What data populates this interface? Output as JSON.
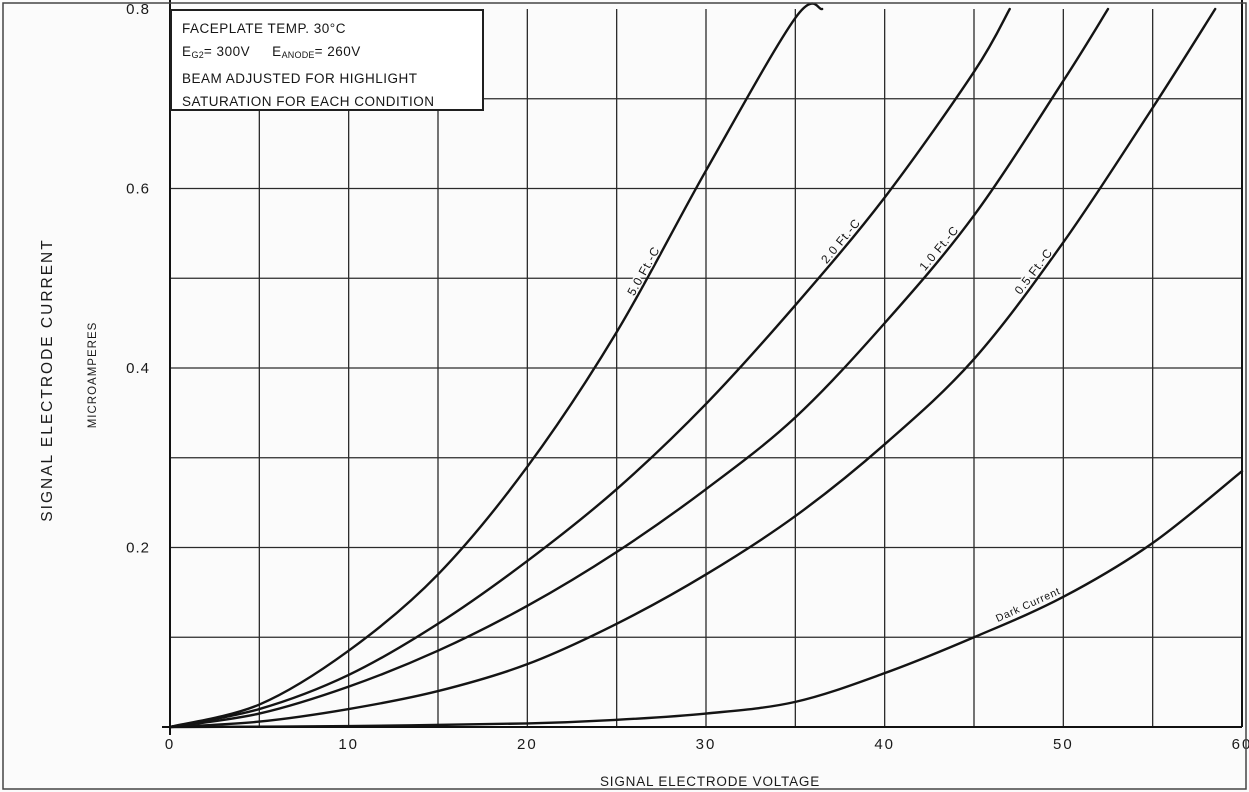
{
  "chart_data": {
    "type": "line",
    "xlabel": "SIGNAL ELECTRODE VOLTAGE",
    "ylabel": "SIGNAL ELECTRODE CURRENT",
    "ylabel_units": "MICROAMPERES",
    "xlim": [
      0,
      60
    ],
    "ylim": [
      0,
      0.8
    ],
    "x_ticks": [
      0,
      10,
      20,
      30,
      40,
      50,
      60
    ],
    "x_tick_labels": [
      "0",
      "10",
      "20",
      "30",
      "40",
      "50",
      "60"
    ],
    "y_ticks": [
      0.2,
      0.4,
      0.6,
      0.8
    ],
    "y_tick_labels": [
      "0.2",
      "0.4",
      "0.6",
      "0.8"
    ],
    "x_grid_step": 5,
    "y_grid_step": 0.1,
    "grid": true,
    "legend": "none",
    "annotation": {
      "line1": "FACEPLATE TEMP. 30°C",
      "eg2_symbol": "E",
      "eg2_sub": "G2",
      "eg2_value": "= 300V",
      "eanode_symbol": "E",
      "eanode_sub": "ANODE",
      "eanode_value": "= 260V",
      "line3": "BEAM ADJUSTED FOR HIGHLIGHT",
      "line4": "SATURATION FOR EACH CONDITION"
    },
    "series": [
      {
        "name": "5.0 Ft.-C",
        "x": [
          0,
          5,
          10,
          15,
          20,
          25,
          30,
          35,
          36.5
        ],
        "y": [
          0,
          0.025,
          0.085,
          0.17,
          0.29,
          0.44,
          0.62,
          0.79,
          0.8
        ]
      },
      {
        "name": "2.0 Ft.-C",
        "x": [
          0,
          5,
          10,
          15,
          20,
          25,
          30,
          35,
          40,
          45,
          47
        ],
        "y": [
          0,
          0.02,
          0.058,
          0.115,
          0.185,
          0.265,
          0.36,
          0.47,
          0.59,
          0.73,
          0.8
        ]
      },
      {
        "name": "1.0 Ft.-C",
        "x": [
          0,
          5,
          10,
          15,
          20,
          25,
          30,
          35,
          40,
          45,
          50,
          52.5
        ],
        "y": [
          0,
          0.015,
          0.045,
          0.085,
          0.135,
          0.195,
          0.265,
          0.345,
          0.45,
          0.57,
          0.72,
          0.8
        ]
      },
      {
        "name": "0.5 Ft.-C",
        "x": [
          0,
          5,
          10,
          15,
          20,
          25,
          30,
          35,
          40,
          45,
          50,
          55,
          58.5
        ],
        "y": [
          0,
          0.006,
          0.02,
          0.04,
          0.07,
          0.115,
          0.17,
          0.235,
          0.315,
          0.41,
          0.54,
          0.69,
          0.8
        ]
      },
      {
        "name": "Dark Current",
        "x": [
          0,
          10,
          20,
          25,
          30,
          35,
          40,
          45,
          50,
          55,
          60
        ],
        "y": [
          0,
          0.001,
          0.004,
          0.008,
          0.015,
          0.028,
          0.06,
          0.1,
          0.145,
          0.205,
          0.285
        ]
      }
    ]
  }
}
